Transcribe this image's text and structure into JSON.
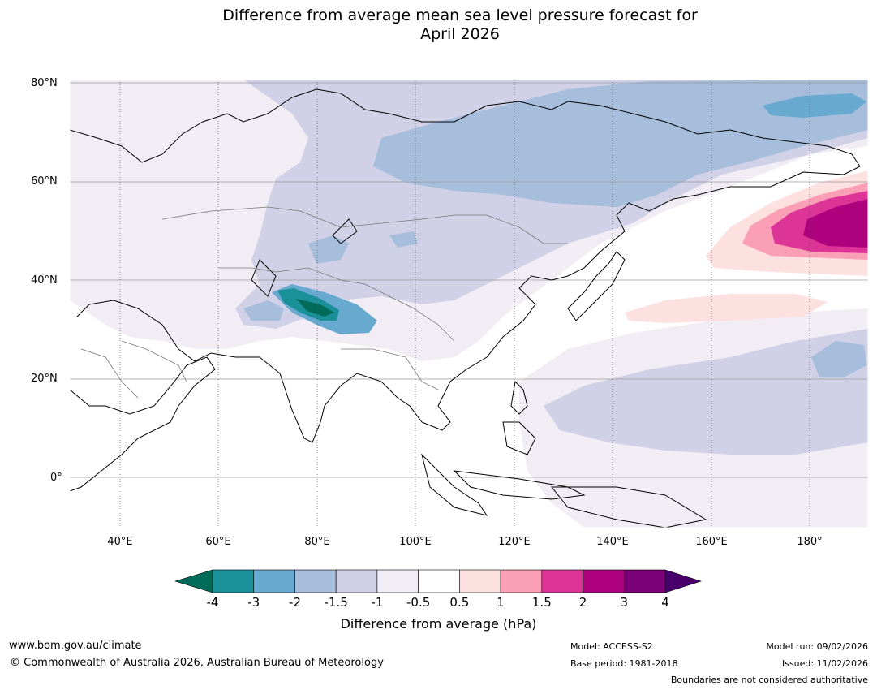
{
  "title": {
    "line1": "Difference from average mean sea level pressure forecast for",
    "line2": "April 2026"
  },
  "map": {
    "region": "Asia and western Pacific",
    "lat_labels": [
      "80°N",
      "60°N",
      "40°N",
      "20°N",
      "0°"
    ],
    "lon_labels": [
      "40°E",
      "60°E",
      "80°E",
      "100°E",
      "120°E",
      "140°E",
      "160°E",
      "180°"
    ]
  },
  "colorbar": {
    "ticks": [
      "-4",
      "-3",
      "-2",
      "-1.5",
      "-1",
      "-0.5",
      "0.5",
      "1",
      "1.5",
      "2",
      "3",
      "4"
    ],
    "colors": [
      "#006b59",
      "#1a9099",
      "#67a9cf",
      "#a6bddb",
      "#d0d1e6",
      "#f2edf5",
      "#ffffff",
      "#fde0e0",
      "#fa9fb5",
      "#dd3497",
      "#ae017e",
      "#7a0177",
      "#49006a"
    ],
    "label": "Difference from average (hPa)"
  },
  "footer": {
    "url": "www.bom.gov.au/climate",
    "copyright": "© Commonwealth of Australia 2026, Australian Bureau of Meteorology",
    "model": "Model: ACCESS-S2",
    "base_period": "Base period: 1981-2018",
    "model_run": "Model run: 09/02/2026",
    "issued": "Issued: 11/02/2026",
    "disclaimer": "Boundaries are not considered authoritative"
  }
}
